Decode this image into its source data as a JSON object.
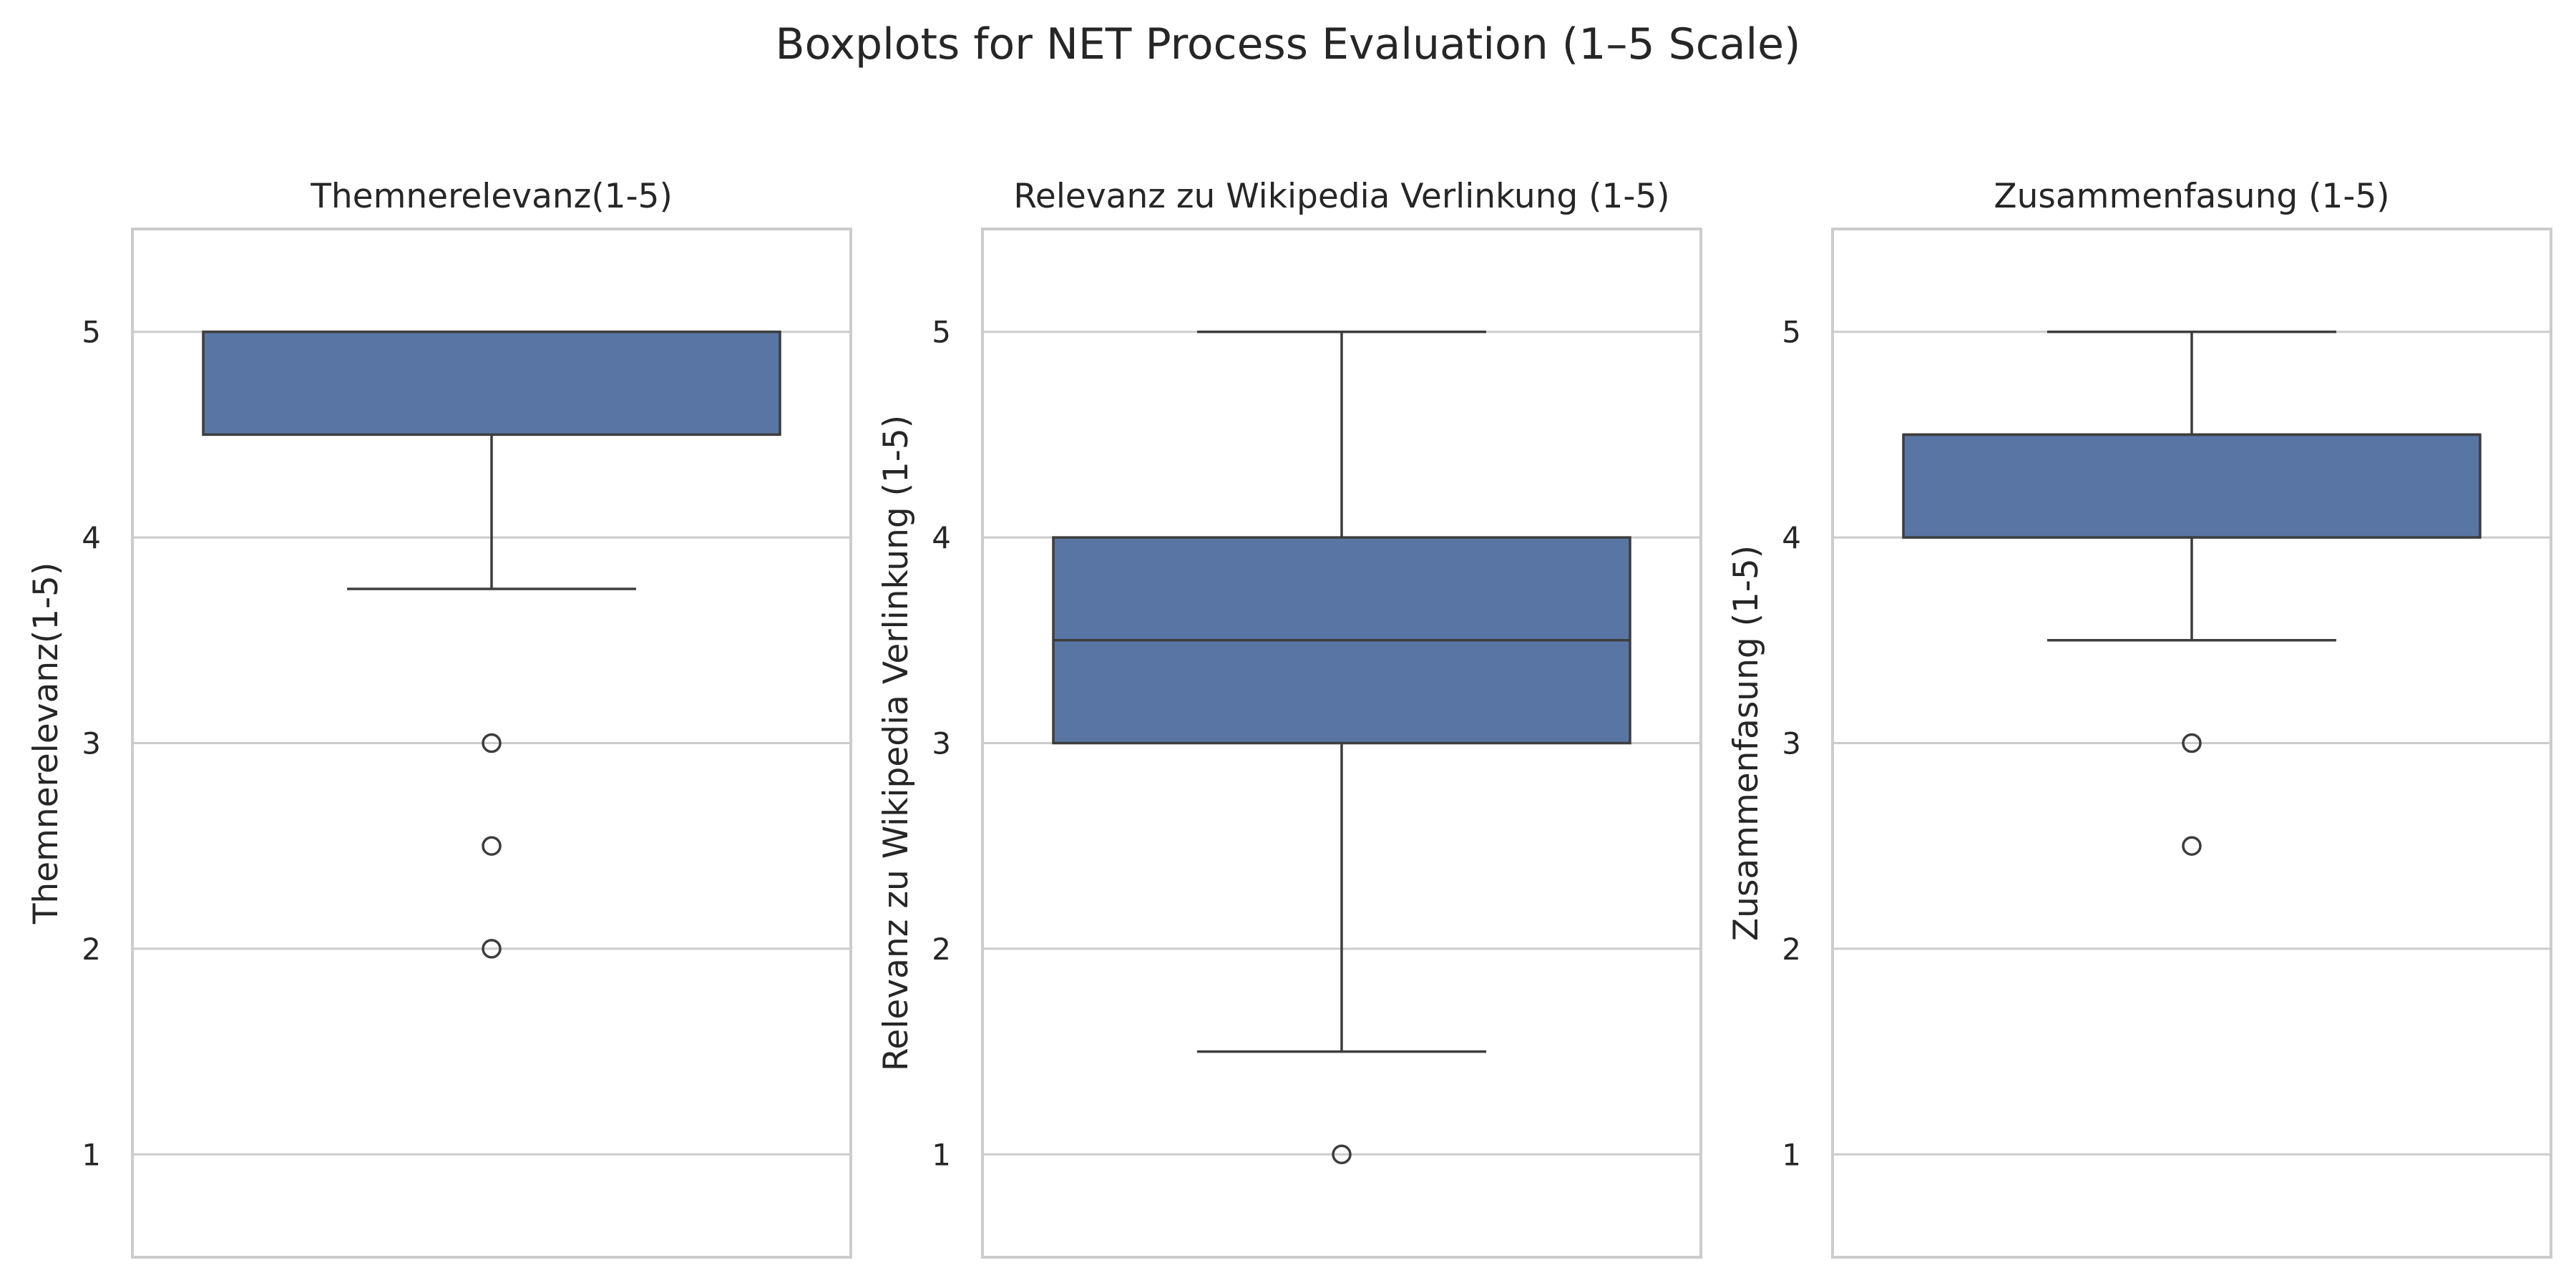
{
  "suptitle": "Boxplots for NET Process Evaluation (1–5 Scale)",
  "chart_data": [
    {
      "type": "box",
      "title": "Themnerelevanz(1-5)",
      "xlabel": "",
      "ylabel": "Themnerelevanz(1-5)",
      "ylim": [
        0.5,
        5.5
      ],
      "yticks": [
        1,
        2,
        3,
        4,
        5
      ],
      "grid": true,
      "box": {
        "whisker_low": 3.75,
        "q1": 4.5,
        "median": 5,
        "q3": 5,
        "whisker_high": 5
      },
      "outliers": [
        3,
        2.5,
        2
      ],
      "color": "#5975a4"
    },
    {
      "type": "box",
      "title": "Relevanz zu Wikipedia Verlinkung (1-5)",
      "xlabel": "",
      "ylabel": "Relevanz zu Wikipedia Verlinkung (1-5)",
      "ylim": [
        0.5,
        5.5
      ],
      "yticks": [
        1,
        2,
        3,
        4,
        5
      ],
      "grid": true,
      "box": {
        "whisker_low": 1.5,
        "q1": 3,
        "median": 3.5,
        "q3": 4,
        "whisker_high": 5
      },
      "outliers": [
        1
      ],
      "color": "#5975a4"
    },
    {
      "type": "box",
      "title": "Zusammenfasung (1-5)",
      "xlabel": "",
      "ylabel": "Zusammenfasung (1-5)",
      "ylim": [
        0.5,
        5.5
      ],
      "yticks": [
        1,
        2,
        3,
        4,
        5
      ],
      "grid": true,
      "box": {
        "whisker_low": 3.5,
        "q1": 4,
        "median": 4.5,
        "q3": 4.5,
        "whisker_high": 5
      },
      "outliers": [
        3,
        2.5
      ],
      "color": "#5975a4"
    }
  ]
}
